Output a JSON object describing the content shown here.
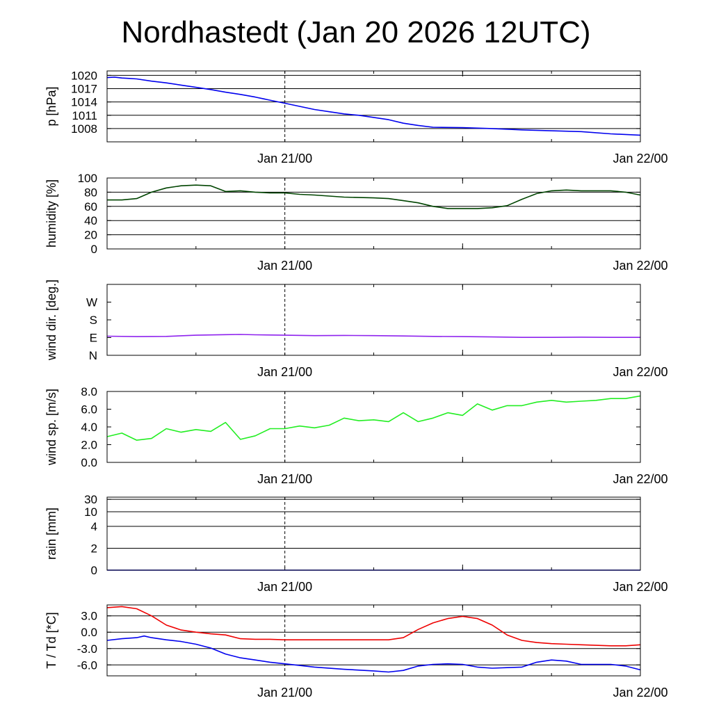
{
  "title": "Nordhastedt (Jan 20 2026 12UTC)",
  "chart_data": [
    {
      "id": "pressure",
      "type": "line",
      "ylabel": "p [hPa]",
      "scale": "linear",
      "ylim": [
        1005,
        1021
      ],
      "ticks": [
        {
          "v": 1008,
          "label": "1008"
        },
        {
          "v": 1011,
          "label": "1011"
        },
        {
          "v": 1014,
          "label": "1014"
        },
        {
          "v": 1017,
          "label": "1017"
        },
        {
          "v": 1020,
          "label": "1020"
        }
      ],
      "gridlines": [
        1008,
        1011,
        1014,
        1017,
        1020
      ],
      "x_ticks": [
        "Jan 21/00",
        "Jan 22/00"
      ],
      "series": [
        {
          "color": "#0000ee",
          "x": [
            0,
            0.5,
            1,
            1.5,
            2,
            3,
            4,
            5,
            6,
            7,
            8,
            9,
            10,
            11,
            12,
            13,
            14,
            15,
            16,
            17,
            18,
            19,
            20,
            21,
            22,
            24,
            26,
            28,
            30,
            32,
            34,
            36
          ],
          "y": [
            1019.5,
            1019.6,
            1019.4,
            1019.3,
            1019.2,
            1018.7,
            1018.3,
            1017.8,
            1017.3,
            1016.8,
            1016.2,
            1015.7,
            1015.1,
            1014.4,
            1013.7,
            1013.0,
            1012.3,
            1011.8,
            1011.3,
            1011.0,
            1010.5,
            1010.0,
            1009.2,
            1008.7,
            1008.3,
            1008.2,
            1008.0,
            1007.7,
            1007.5,
            1007.3,
            1006.8,
            1006.5
          ]
        }
      ]
    },
    {
      "id": "humidity",
      "type": "line",
      "ylabel": "humidity [%]",
      "scale": "linear",
      "ylim": [
        0,
        100
      ],
      "ticks": [
        {
          "v": 0,
          "label": "0"
        },
        {
          "v": 20,
          "label": "20"
        },
        {
          "v": 40,
          "label": "40"
        },
        {
          "v": 60,
          "label": "60"
        },
        {
          "v": 80,
          "label": "80"
        },
        {
          "v": 100,
          "label": "100"
        }
      ],
      "gridlines": [
        0,
        20,
        40,
        60,
        80,
        100
      ],
      "x_ticks": [
        "Jan 21/00",
        "Jan 22/00"
      ],
      "series": [
        {
          "color": "#004400",
          "x": [
            0,
            1,
            2,
            3,
            4,
            5,
            6,
            7,
            8,
            9,
            10,
            11,
            12,
            13,
            14,
            16,
            18,
            19,
            20,
            21,
            22,
            23,
            24,
            25,
            26,
            27,
            28,
            29,
            30,
            31,
            32,
            33,
            34,
            35,
            36
          ],
          "y": [
            69,
            69,
            71,
            80,
            86,
            89,
            90,
            89,
            81,
            82,
            80,
            79,
            79,
            77,
            76,
            73,
            72,
            71,
            68,
            65,
            60,
            57,
            57,
            57,
            58,
            61,
            70,
            78,
            82,
            83,
            82,
            82,
            82,
            80,
            76
          ]
        }
      ]
    },
    {
      "id": "wind-direction",
      "type": "line",
      "ylabel": "wind dir. [deg.]",
      "scale": "linear",
      "ylim": [
        0,
        360
      ],
      "ticks": [
        {
          "v": 0,
          "label": "N"
        },
        {
          "v": 90,
          "label": "E"
        },
        {
          "v": 180,
          "label": "S"
        },
        {
          "v": 270,
          "label": "W"
        }
      ],
      "gridlines": [],
      "x_ticks": [
        "Jan 21/00",
        "Jan 22/00"
      ],
      "series": [
        {
          "color": "#8e22ee",
          "x": [
            0,
            2,
            4,
            6,
            8,
            9,
            10,
            12,
            14,
            16,
            18,
            20,
            22,
            24,
            26,
            28,
            30,
            32,
            34,
            36
          ],
          "y": [
            97,
            95,
            96,
            102,
            105,
            106,
            104,
            102,
            100,
            101,
            100,
            98,
            96,
            95,
            93,
            91,
            91,
            92,
            91,
            91
          ]
        }
      ]
    },
    {
      "id": "wind-speed",
      "type": "line",
      "ylabel": "wind sp. [m/s]",
      "scale": "linear",
      "ylim": [
        0,
        8
      ],
      "ticks": [
        {
          "v": 0,
          "label": "0.0"
        },
        {
          "v": 2,
          "label": "2.0"
        },
        {
          "v": 4,
          "label": "4.0"
        },
        {
          "v": 6,
          "label": "6.0"
        },
        {
          "v": 8,
          "label": "8.0"
        }
      ],
      "gridlines": [],
      "x_ticks": [
        "Jan 21/00",
        "Jan 22/00"
      ],
      "series": [
        {
          "color": "#22ee22",
          "x": [
            0,
            1,
            2,
            3,
            4,
            5,
            6,
            7,
            8,
            9,
            10,
            11,
            12,
            13,
            14,
            15,
            16,
            17,
            18,
            19,
            20,
            21,
            22,
            23,
            24,
            25,
            26,
            27,
            28,
            29,
            30,
            31,
            32,
            33,
            34,
            35,
            36
          ],
          "y": [
            2.9,
            3.3,
            2.5,
            2.7,
            3.8,
            3.4,
            3.7,
            3.5,
            4.5,
            2.6,
            3.0,
            3.8,
            3.8,
            4.1,
            3.9,
            4.2,
            5.0,
            4.7,
            4.8,
            4.6,
            5.6,
            4.6,
            5.0,
            5.6,
            5.3,
            6.6,
            5.9,
            6.4,
            6.4,
            6.8,
            7.0,
            6.8,
            6.9,
            7.0,
            7.2,
            7.2,
            7.5
          ]
        }
      ]
    },
    {
      "id": "rain",
      "type": "line",
      "ylabel": "rain [mm]",
      "scale": "categorical",
      "ylim": [
        0,
        30
      ],
      "ticks": [
        {
          "v": 0,
          "label": "0"
        },
        {
          "v": 2,
          "label": "2"
        },
        {
          "v": 4,
          "label": "4"
        },
        {
          "v": 10,
          "label": "10"
        },
        {
          "v": 30,
          "label": "30"
        }
      ],
      "gridlines": [
        0,
        2,
        4,
        10,
        30
      ],
      "x_ticks": [
        "Jan 21/00",
        "Jan 22/00"
      ],
      "series": [
        {
          "color": "#0000ee",
          "x": [
            0,
            36
          ],
          "y": [
            0,
            0
          ]
        }
      ]
    },
    {
      "id": "temperature",
      "type": "line",
      "ylabel": "T / Td [*C]",
      "scale": "linear",
      "ylim": [
        -8,
        5
      ],
      "ticks": [
        {
          "v": -6,
          "label": "-6.0"
        },
        {
          "v": -3,
          "label": "-3.0"
        },
        {
          "v": 0,
          "label": "0.0"
        },
        {
          "v": 3,
          "label": "3.0"
        }
      ],
      "gridlines": [
        -6,
        -3,
        0,
        3
      ],
      "x_ticks": [
        "Jan 21/00",
        "Jan 22/00"
      ],
      "series": [
        {
          "color": "#ee0000",
          "x": [
            0,
            1,
            2,
            3,
            4,
            5,
            6,
            7,
            8,
            9,
            10,
            11,
            12,
            13,
            14,
            16,
            18,
            19,
            20,
            21,
            22,
            23,
            24,
            25,
            26,
            27,
            28,
            29,
            30,
            31,
            32,
            33,
            34,
            35,
            36
          ],
          "y": [
            4.5,
            4.7,
            4.3,
            3.0,
            1.3,
            0.4,
            0.0,
            -0.3,
            -0.5,
            -1.2,
            -1.3,
            -1.3,
            -1.4,
            -1.4,
            -1.4,
            -1.4,
            -1.4,
            -1.4,
            -1.0,
            0.5,
            1.7,
            2.5,
            2.9,
            2.5,
            1.3,
            -0.5,
            -1.5,
            -1.9,
            -2.1,
            -2.2,
            -2.3,
            -2.4,
            -2.5,
            -2.5,
            -2.3
          ]
        },
        {
          "color": "#0000ee",
          "x": [
            0,
            1,
            2,
            2.5,
            3,
            4,
            5,
            6,
            7,
            8,
            9,
            10,
            11,
            12,
            13,
            14,
            16,
            18,
            19,
            20,
            21,
            22,
            23,
            24,
            25,
            26,
            27,
            28,
            29,
            30,
            31,
            32,
            33,
            34,
            35,
            36
          ],
          "y": [
            -1.5,
            -1.2,
            -1.0,
            -0.7,
            -1.0,
            -1.4,
            -1.7,
            -2.2,
            -2.9,
            -4.0,
            -4.7,
            -5.1,
            -5.5,
            -5.8,
            -6.1,
            -6.4,
            -6.8,
            -7.1,
            -7.3,
            -7.0,
            -6.2,
            -5.9,
            -5.8,
            -5.9,
            -6.4,
            -6.6,
            -6.5,
            -6.4,
            -5.5,
            -5.1,
            -5.3,
            -5.9,
            -5.9,
            -5.9,
            -6.2,
            -6.9
          ]
        }
      ]
    }
  ]
}
